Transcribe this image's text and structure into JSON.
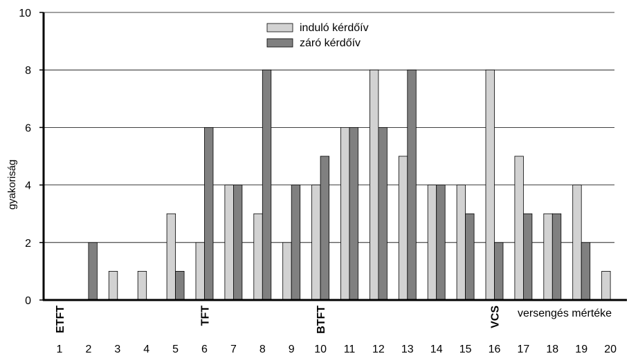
{
  "chart_data": {
    "type": "bar",
    "ylabel": "gyakoriság",
    "xlabel": "versengés mértéke",
    "ylim": [
      0,
      10
    ],
    "yticks": [
      0,
      2,
      4,
      6,
      8,
      10
    ],
    "grid": true,
    "legend_position": "top-center",
    "categories": [
      "1",
      "2",
      "3",
      "4",
      "5",
      "6",
      "7",
      "8",
      "9",
      "10",
      "11",
      "12",
      "13",
      "14",
      "15",
      "16",
      "17",
      "18",
      "19",
      "20"
    ],
    "series": [
      {
        "name": "induló kérdőív",
        "color": "#d2d2d2",
        "values": [
          0,
          0,
          1,
          1,
          3,
          2,
          4,
          3,
          2,
          4,
          6,
          8,
          5,
          4,
          4,
          8,
          5,
          3,
          4,
          1
        ]
      },
      {
        "name": "záró kérdőív",
        "color": "#808080",
        "values": [
          0,
          2,
          0,
          0,
          1,
          6,
          4,
          8,
          4,
          5,
          6,
          6,
          8,
          4,
          3,
          2,
          3,
          3,
          2,
          0
        ]
      }
    ],
    "annotations": [
      {
        "category": "1",
        "text": "ETFT"
      },
      {
        "category": "6",
        "text": "TFT"
      },
      {
        "category": "10",
        "text": "BTFT"
      },
      {
        "category": "16",
        "text": "VCS"
      }
    ]
  }
}
